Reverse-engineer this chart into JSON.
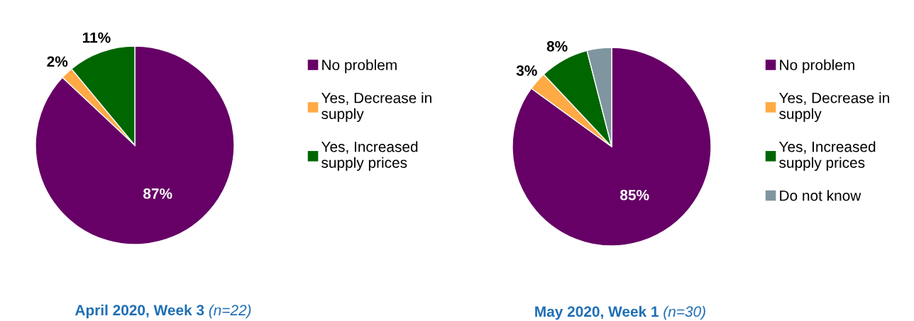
{
  "chart_data": [
    {
      "type": "pie",
      "title": "April 2020, Week 3",
      "subtitle": "(n=22)",
      "categories": [
        "No problem",
        "Yes, Decrease in\nsupply",
        "Yes, Increased\nsupply prices"
      ],
      "values": [
        87,
        2,
        11
      ],
      "colors": [
        "#660066",
        "#ffaa44",
        "#006600"
      ],
      "value_labels": [
        "87%",
        "2%",
        "11%"
      ],
      "legend": "right"
    },
    {
      "type": "pie",
      "title": "May 2020, Week 1",
      "subtitle": "(n=30)",
      "categories": [
        "No problem",
        "Yes, Decrease in\nsupply",
        "Yes, Increased\nsupply prices",
        "Do not know"
      ],
      "values": [
        85,
        3,
        8,
        4
      ],
      "colors": [
        "#660066",
        "#ffaa44",
        "#006600",
        "#7f96a0"
      ],
      "value_labels": [
        "85%",
        "3%",
        "8%",
        null
      ],
      "legend": "right"
    }
  ]
}
